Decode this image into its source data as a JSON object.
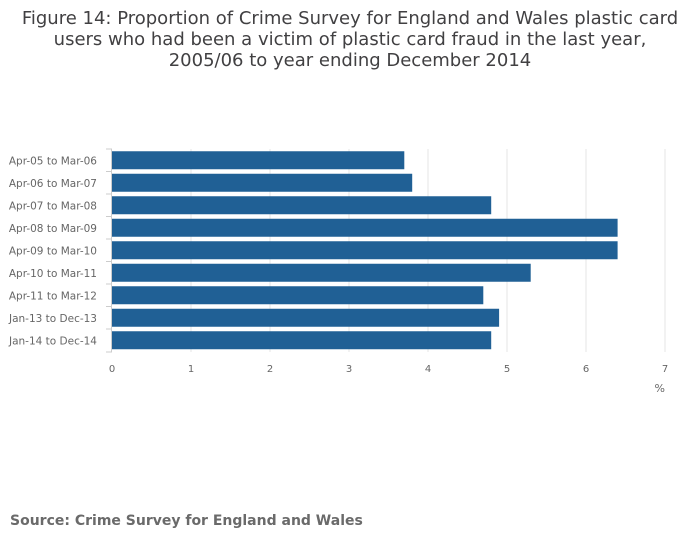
{
  "title": "Figure 14: Proportion of Crime Survey for England and Wales plastic card users who had been a victim of plastic card fraud in the last year, 2005/06 to year ending December 2014",
  "source": "Source: Crime Survey for England and Wales",
  "colors": {
    "bar": "#206095",
    "grid": "#e6e6e6",
    "axis": "#cccccc",
    "tick_text": "#666666"
  },
  "chart_data": {
    "type": "bar",
    "orientation": "horizontal",
    "categories": [
      "Apr-05 to Mar-06",
      "Apr-06 to Mar-07",
      "Apr-07 to Mar-08",
      "Apr-08 to Mar-09",
      "Apr-09 to Mar-10",
      "Apr-10 to Mar-11",
      "Apr-11 to Mar-12",
      "Jan-13 to Dec-13",
      "Jan-14 to Dec-14"
    ],
    "values": [
      3.7,
      3.8,
      4.8,
      6.4,
      6.4,
      5.3,
      4.7,
      4.9,
      4.8
    ],
    "xlabel": "%",
    "ylabel": "",
    "xlim": [
      0,
      7
    ],
    "xticks": [
      "0",
      "1",
      "2",
      "3",
      "4",
      "5",
      "6",
      "7"
    ],
    "grid": true,
    "legend": "none"
  }
}
